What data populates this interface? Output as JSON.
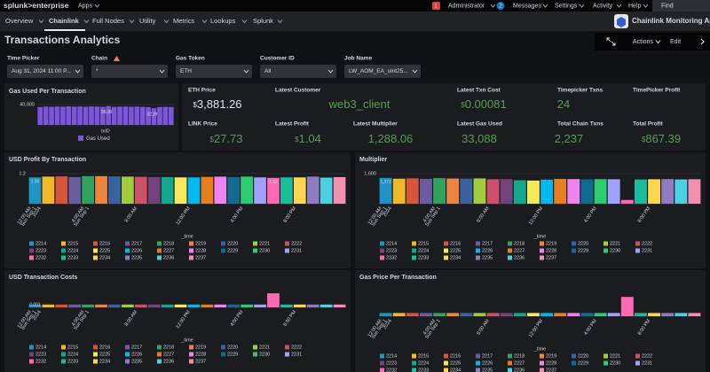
{
  "top_bar": {
    "logo": "splunk>enterprise",
    "apps": "Apps",
    "items": [
      {
        "badge": "1",
        "label": "Administrator"
      },
      {
        "badge": "2",
        "label": "Messages"
      },
      {
        "label": "Settings"
      },
      {
        "label": "Activity"
      },
      {
        "label": "Help"
      }
    ],
    "find": "Find"
  },
  "nav": {
    "items": [
      "Overview",
      "Chainlink",
      "Full Nodes",
      "Utility",
      "Metrics",
      "Lookups",
      "Splunk"
    ],
    "app_name": "Chainlink Monitoring App"
  },
  "header": {
    "title": "Transactions Analytics",
    "actions": "Actions",
    "edit": "Edit"
  },
  "inputs": [
    {
      "label": "Time Picker",
      "value": "Aug 31, 2024 11:00 P..."
    },
    {
      "label": "Chain",
      "value": "*"
    },
    {
      "label": "Gas Token",
      "value": "ETH"
    },
    {
      "label": "Customer ID",
      "value": "All"
    },
    {
      "label": "Job Name",
      "value": "LW_AOM_EA_uint25..."
    }
  ],
  "gas_used": {
    "title": "Gas Used Per Transaction",
    "color": "#7b56db",
    "ylim": [
      0,
      40000
    ],
    "yticks": [
      {
        "value": 40000,
        "label": "40,000"
      }
    ],
    "values": [
      35000,
      36000,
      35500,
      36200,
      35800,
      36400,
      35900,
      36100,
      35700,
      36300,
      36000,
      35600,
      36884,
      35400,
      35900,
      36100,
      35800,
      36000,
      35500,
      34800,
      32860,
      35200,
      35600,
      35300
    ],
    "value_labels": [
      null,
      null,
      null,
      null,
      null,
      null,
      null,
      null,
      null,
      null,
      null,
      null,
      "36,884",
      null,
      null,
      null,
      null,
      null,
      null,
      null,
      "32,860",
      null,
      null,
      null
    ],
    "x_title": "txID",
    "legend": "Gas Used"
  },
  "singles": [
    {
      "label": "ETH Price",
      "prefix": "$",
      "value": "3,881.26",
      "color": "#e1e6eb"
    },
    {
      "label": "Latest Customer",
      "value": "web3_client",
      "color": "#53a051"
    },
    {
      "label": "Latest Txn Cost",
      "prefix": "$",
      "value": "0.00081",
      "color": "#53a051"
    },
    {
      "label": "Timepicker Txns",
      "value": "24",
      "color": "#53a051"
    },
    {
      "label": "TimePicker Profit"
    },
    {
      "label": "LINK Price",
      "prefix": "$",
      "value": "27.73",
      "color": "#53a051"
    },
    {
      "label": "Latest Profit",
      "prefix": "$",
      "value": "1.04",
      "color": "#53a051"
    },
    {
      "label": "Latest Multiplier",
      "value": "1,288.06",
      "color": "#53a051"
    },
    {
      "label": "Latest Gas Used",
      "value": "33,088",
      "color": "#53a051"
    },
    {
      "label": "Total Chain Txns",
      "value": "2,237",
      "color": "#53a051"
    },
    {
      "label": "Total Profit",
      "prefix": "$",
      "value": "867.39",
      "color": "#53a051"
    }
  ],
  "legend_ids": [
    "2214",
    "2215",
    "2216",
    "2217",
    "2218",
    "2219",
    "2220",
    "2221",
    "2222",
    "2223",
    "2224",
    "2225",
    "2226",
    "2227",
    "2228",
    "2229",
    "2230",
    "2231",
    "2232",
    "2233",
    "2234",
    "2235",
    "2236",
    "2237"
  ],
  "palette": [
    "#1e93c6",
    "#f2b827",
    "#d6563c",
    "#6a5c9e",
    "#31a35f",
    "#ed8440",
    "#3863a0",
    "#a2cc3e",
    "#cc5068",
    "#73427f",
    "#11a88b",
    "#f7e85b",
    "#00b9f2",
    "#e67e22",
    "#ee82ee",
    "#0f6b8f",
    "#2ecc71",
    "#a0a0ff",
    "#ff69b4",
    "#1abc9c",
    "#ffd54f",
    "#8e7cc3",
    "#4dd0e1",
    "#f48fb1"
  ],
  "time_labels": [
    [
      "12:00 AM",
      "Sun Sep 1",
      "2024"
    ],
    [
      "4:00 AM",
      "Sun Sep 1"
    ],
    [
      "8:00 AM"
    ],
    [
      "12:00 PM"
    ],
    [
      "4:00 PM"
    ],
    [
      "8:00 PM"
    ]
  ],
  "x_title": "_time",
  "charts": [
    {
      "title": "USD Profit By Transaction",
      "ylim": [
        0,
        1.2
      ],
      "yticks": [
        1.2
      ],
      "values": [
        1.05,
        1.08,
        1.09,
        1.06,
        1.1,
        1.1,
        1.09,
        1.08,
        1.07,
        1.06,
        1.06,
        1.05,
        1.05,
        1.07,
        1.08,
        1.06,
        1.08,
        1.05,
        1.03,
        1.05,
        1.05,
        1.08,
        1.04,
        1.06
      ],
      "value_labels": [
        "1.05",
        null,
        null,
        null,
        null,
        null,
        null,
        null,
        null,
        null,
        null,
        null,
        null,
        null,
        null,
        null,
        null,
        null,
        "1.03",
        null,
        null,
        null,
        null,
        null
      ]
    },
    {
      "title": "Multiplier",
      "ylim": [
        0,
        1600
      ],
      "yticks": [
        {
          "value": 1600,
          "label": "1,600"
        }
      ],
      "values": [
        1372,
        1330,
        1350,
        1320,
        1360,
        1340,
        1330,
        1345,
        1300,
        1310,
        1250,
        1230,
        1280,
        1320,
        1310,
        1300,
        1305,
        1300,
        200,
        1288,
        1300,
        1310,
        1290,
        1300
      ],
      "value_labels": [
        "1,372",
        null,
        null,
        null,
        null,
        null,
        null,
        null,
        null,
        null,
        null,
        null,
        null,
        null,
        null,
        null,
        null,
        null,
        null,
        null,
        null,
        null,
        null,
        null
      ]
    },
    {
      "title": "USD Transaction Costs",
      "ylim": [
        0,
        0.006
      ],
      "values": [
        0.001,
        0.001,
        0.001,
        0.001,
        0.001,
        0.001,
        0.001,
        0.001,
        0.001,
        0.001,
        0.001,
        0.001,
        0.001,
        0.001,
        0.001,
        0.001,
        0.001,
        0.001,
        0.005,
        0.001,
        0.001,
        0.001,
        0.001,
        0.001
      ],
      "value_labels": [
        "0.001",
        null,
        null,
        null,
        null,
        null,
        null,
        null,
        null,
        null,
        null,
        null,
        null,
        null,
        null,
        null,
        null,
        null,
        null,
        null,
        null,
        null,
        null,
        null
      ]
    },
    {
      "title": "Gas Price Per Transaction",
      "ylim": [
        0,
        40
      ],
      "values": [
        5,
        5,
        5,
        5,
        5,
        5,
        5,
        5,
        5,
        5,
        5,
        5,
        5,
        5,
        5,
        5,
        5,
        5,
        30,
        5,
        5,
        5,
        5,
        5
      ]
    }
  ]
}
